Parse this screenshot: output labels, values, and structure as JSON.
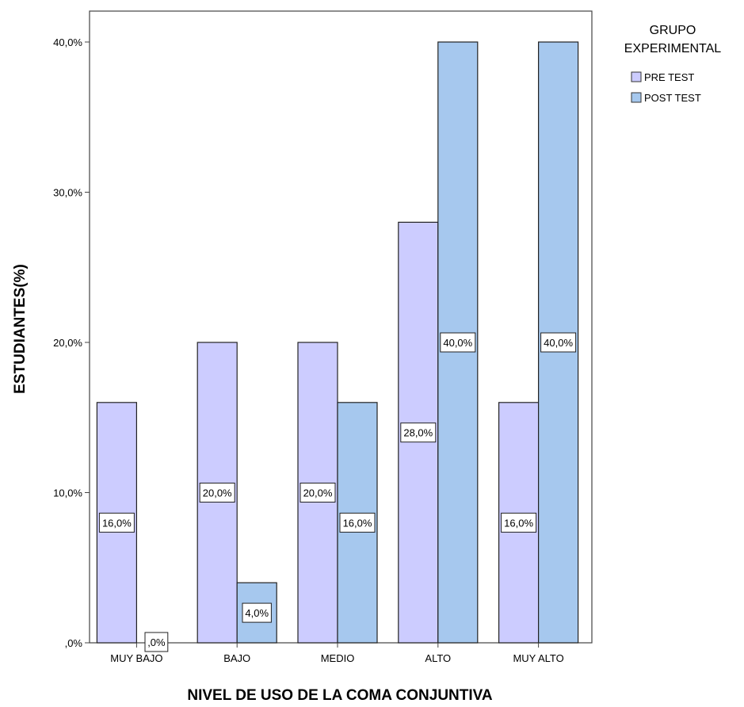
{
  "chart_data": {
    "type": "bar",
    "categories": [
      "MUY BAJO",
      "BAJO",
      "MEDIO",
      "ALTO",
      "MUY ALTO"
    ],
    "series": [
      {
        "name": "PRE TEST",
        "values": [
          16.0,
          20.0,
          20.0,
          28.0,
          16.0
        ],
        "labels": [
          "16,0%",
          "20,0%",
          "20,0%",
          "28,0%",
          "16,0%"
        ],
        "color": "#ccccff"
      },
      {
        "name": "POST TEST",
        "values": [
          0.0,
          4.0,
          16.0,
          40.0,
          40.0
        ],
        "labels": [
          ",0%",
          "4,0%",
          "16,0%",
          "40,0%",
          "40,0%"
        ],
        "color": "#a6c8ee"
      }
    ],
    "xlabel": "NIVEL DE USO DE LA COMA CONJUNTIVA",
    "ylabel": "ESTUDIANTES(%)",
    "ylim": [
      0,
      40
    ],
    "yticks": [
      0,
      10,
      20,
      30,
      40
    ],
    "ytick_labels": [
      ",0%",
      "10,0%",
      "20,0%",
      "30,0%",
      "40,0%"
    ],
    "legend_title": [
      "GRUPO",
      "EXPERIMENTAL"
    ],
    "legend_position": "top-right",
    "grid": false
  }
}
